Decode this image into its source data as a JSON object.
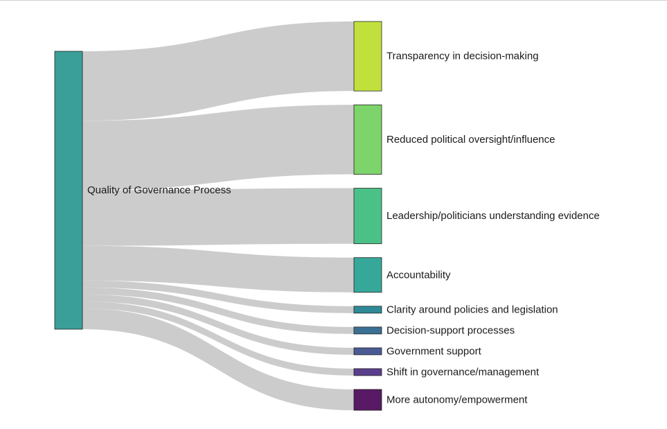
{
  "chart_data": {
    "type": "sankey",
    "source": {
      "label": "Quality of Governance Process",
      "color": "#3a9e99"
    },
    "link_color": "#cccccc",
    "targets": [
      {
        "label": "Transparency in decision-making",
        "value": 10,
        "color": "#c2e03c"
      },
      {
        "label": "Reduced political oversight/influence",
        "value": 10,
        "color": "#7dd46a"
      },
      {
        "label": "Leadership/politicians understanding evidence",
        "value": 8,
        "color": "#4cc187"
      },
      {
        "label": "Accountability",
        "value": 5,
        "color": "#36a899"
      },
      {
        "label": "Clarity around policies and legislation",
        "value": 1,
        "color": "#2f8a96"
      },
      {
        "label": "Decision-support processes",
        "value": 1,
        "color": "#3b6f93"
      },
      {
        "label": "Government support",
        "value": 1,
        "color": "#4a5a93"
      },
      {
        "label": "Shift in governance/management",
        "value": 1,
        "color": "#5b3e8d"
      },
      {
        "label": "More autonomy/empowerment",
        "value": 3,
        "color": "#581a64"
      }
    ]
  }
}
